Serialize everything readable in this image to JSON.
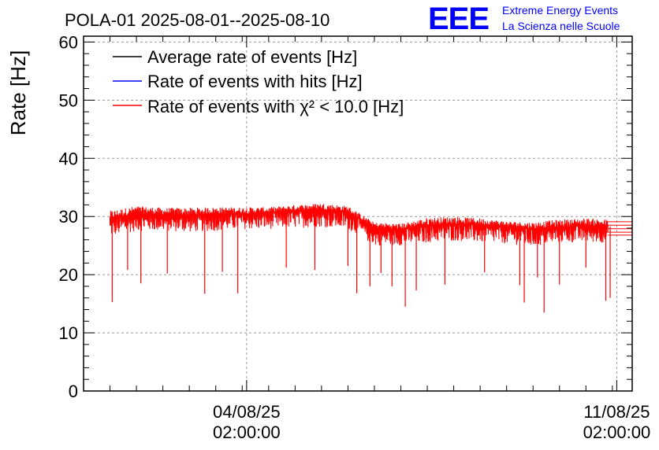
{
  "logo": {
    "text": "EEE",
    "line1": "Extreme Energy Events",
    "line2": "La Scienza nelle Scuole"
  },
  "chart_data": {
    "type": "line",
    "title": "POLA-01 2025-08-01--2025-08-10",
    "ylabel": "Rate [Hz]",
    "xlabel": "",
    "ylim": [
      0,
      61
    ],
    "yticks": [
      "0",
      "10",
      "20",
      "30",
      "40",
      "50",
      "60"
    ],
    "xticks": [
      {
        "date": "04/08/25",
        "time": "02:00:00"
      },
      {
        "date": "11/08/25",
        "time": "02:00:00"
      }
    ],
    "x_range": [
      "2025-08-01 00:00",
      "2025-08-11 09:00"
    ],
    "grid": true,
    "legend_position": "top-left",
    "colors": {
      "average": "#000000",
      "hits": "#0000ff",
      "chi2": "#ff0000"
    },
    "series": [
      {
        "name": "Average rate of events [Hz]",
        "color": "#000000",
        "values": []
      },
      {
        "name": "Rate of events with hits [Hz]",
        "color": "#0000ff",
        "values": []
      },
      {
        "name": "Rate of events with χ² < 10.0 [Hz]",
        "color": "#ff0000",
        "x": [
          "2025-08-01 12:00",
          "2025-08-02 00:00",
          "2025-08-02 12:00",
          "2025-08-03 00:00",
          "2025-08-03 12:00",
          "2025-08-04 00:00",
          "2025-08-04 12:00",
          "2025-08-05 00:00",
          "2025-08-05 12:00",
          "2025-08-06 00:00",
          "2025-08-06 12:00",
          "2025-08-07 00:00",
          "2025-08-07 12:00",
          "2025-08-08 00:00",
          "2025-08-08 12:00",
          "2025-08-09 00:00",
          "2025-08-09 12:00",
          "2025-08-10 00:00",
          "2025-08-10 12:00",
          "2025-08-10 22:00"
        ],
        "values": [
          29.5,
          30.5,
          30.3,
          30.2,
          30.5,
          30.5,
          30.6,
          31.0,
          31.2,
          30.8,
          28.0,
          27.8,
          28.5,
          28.8,
          28.6,
          28.3,
          27.9,
          28.2,
          28.5,
          28.3
        ],
        "band_low": [
          26.5,
          27.5,
          27.5,
          27.3,
          27.5,
          27.8,
          27.8,
          28.0,
          28.2,
          27.8,
          25.0,
          25.0,
          25.5,
          25.8,
          25.5,
          25.3,
          24.8,
          25.5,
          25.5,
          25.5
        ],
        "band_high": [
          31.0,
          31.8,
          31.5,
          31.5,
          31.6,
          31.6,
          31.6,
          32.0,
          32.3,
          31.8,
          29.0,
          28.8,
          29.8,
          30.0,
          29.7,
          29.2,
          29.0,
          29.5,
          29.7,
          29.5
        ],
        "dips": [
          {
            "x": "2025-08-01 13:00",
            "y": 15.3
          },
          {
            "x": "2025-08-01 20:00",
            "y": 20.8
          },
          {
            "x": "2025-08-02 02:00",
            "y": 18.5
          },
          {
            "x": "2025-08-02 14:00",
            "y": 20.2
          },
          {
            "x": "2025-08-03 07:00",
            "y": 16.7
          },
          {
            "x": "2025-08-03 15:00",
            "y": 20.5
          },
          {
            "x": "2025-08-03 22:00",
            "y": 16.8
          },
          {
            "x": "2025-08-04 20:00",
            "y": 21.2
          },
          {
            "x": "2025-08-05 09:00",
            "y": 20.8
          },
          {
            "x": "2025-08-06 00:00",
            "y": 21.5
          },
          {
            "x": "2025-08-06 04:00",
            "y": 16.8
          },
          {
            "x": "2025-08-06 10:00",
            "y": 18.0
          },
          {
            "x": "2025-08-06 15:00",
            "y": 20.3
          },
          {
            "x": "2025-08-06 20:00",
            "y": 18.0
          },
          {
            "x": "2025-08-07 02:00",
            "y": 14.5
          },
          {
            "x": "2025-08-07 07:00",
            "y": 17.3
          },
          {
            "x": "2025-08-07 20:00",
            "y": 18.3
          },
          {
            "x": "2025-08-08 14:00",
            "y": 20.4
          },
          {
            "x": "2025-08-09 06:00",
            "y": 18.2
          },
          {
            "x": "2025-08-09 08:00",
            "y": 15.2
          },
          {
            "x": "2025-08-09 14:00",
            "y": 19.5
          },
          {
            "x": "2025-08-09 17:00",
            "y": 13.5
          },
          {
            "x": "2025-08-10 00:00",
            "y": 18.3
          },
          {
            "x": "2025-08-10 12:00",
            "y": 21.2
          },
          {
            "x": "2025-08-10 21:00",
            "y": 15.5
          },
          {
            "x": "2025-08-10 23:00",
            "y": 16.0
          }
        ],
        "tail": {
          "x_end": "2025-08-11 09:00",
          "levels": [
            26.8,
            27.3,
            27.9,
            28.5,
            29.1
          ]
        }
      }
    ]
  }
}
